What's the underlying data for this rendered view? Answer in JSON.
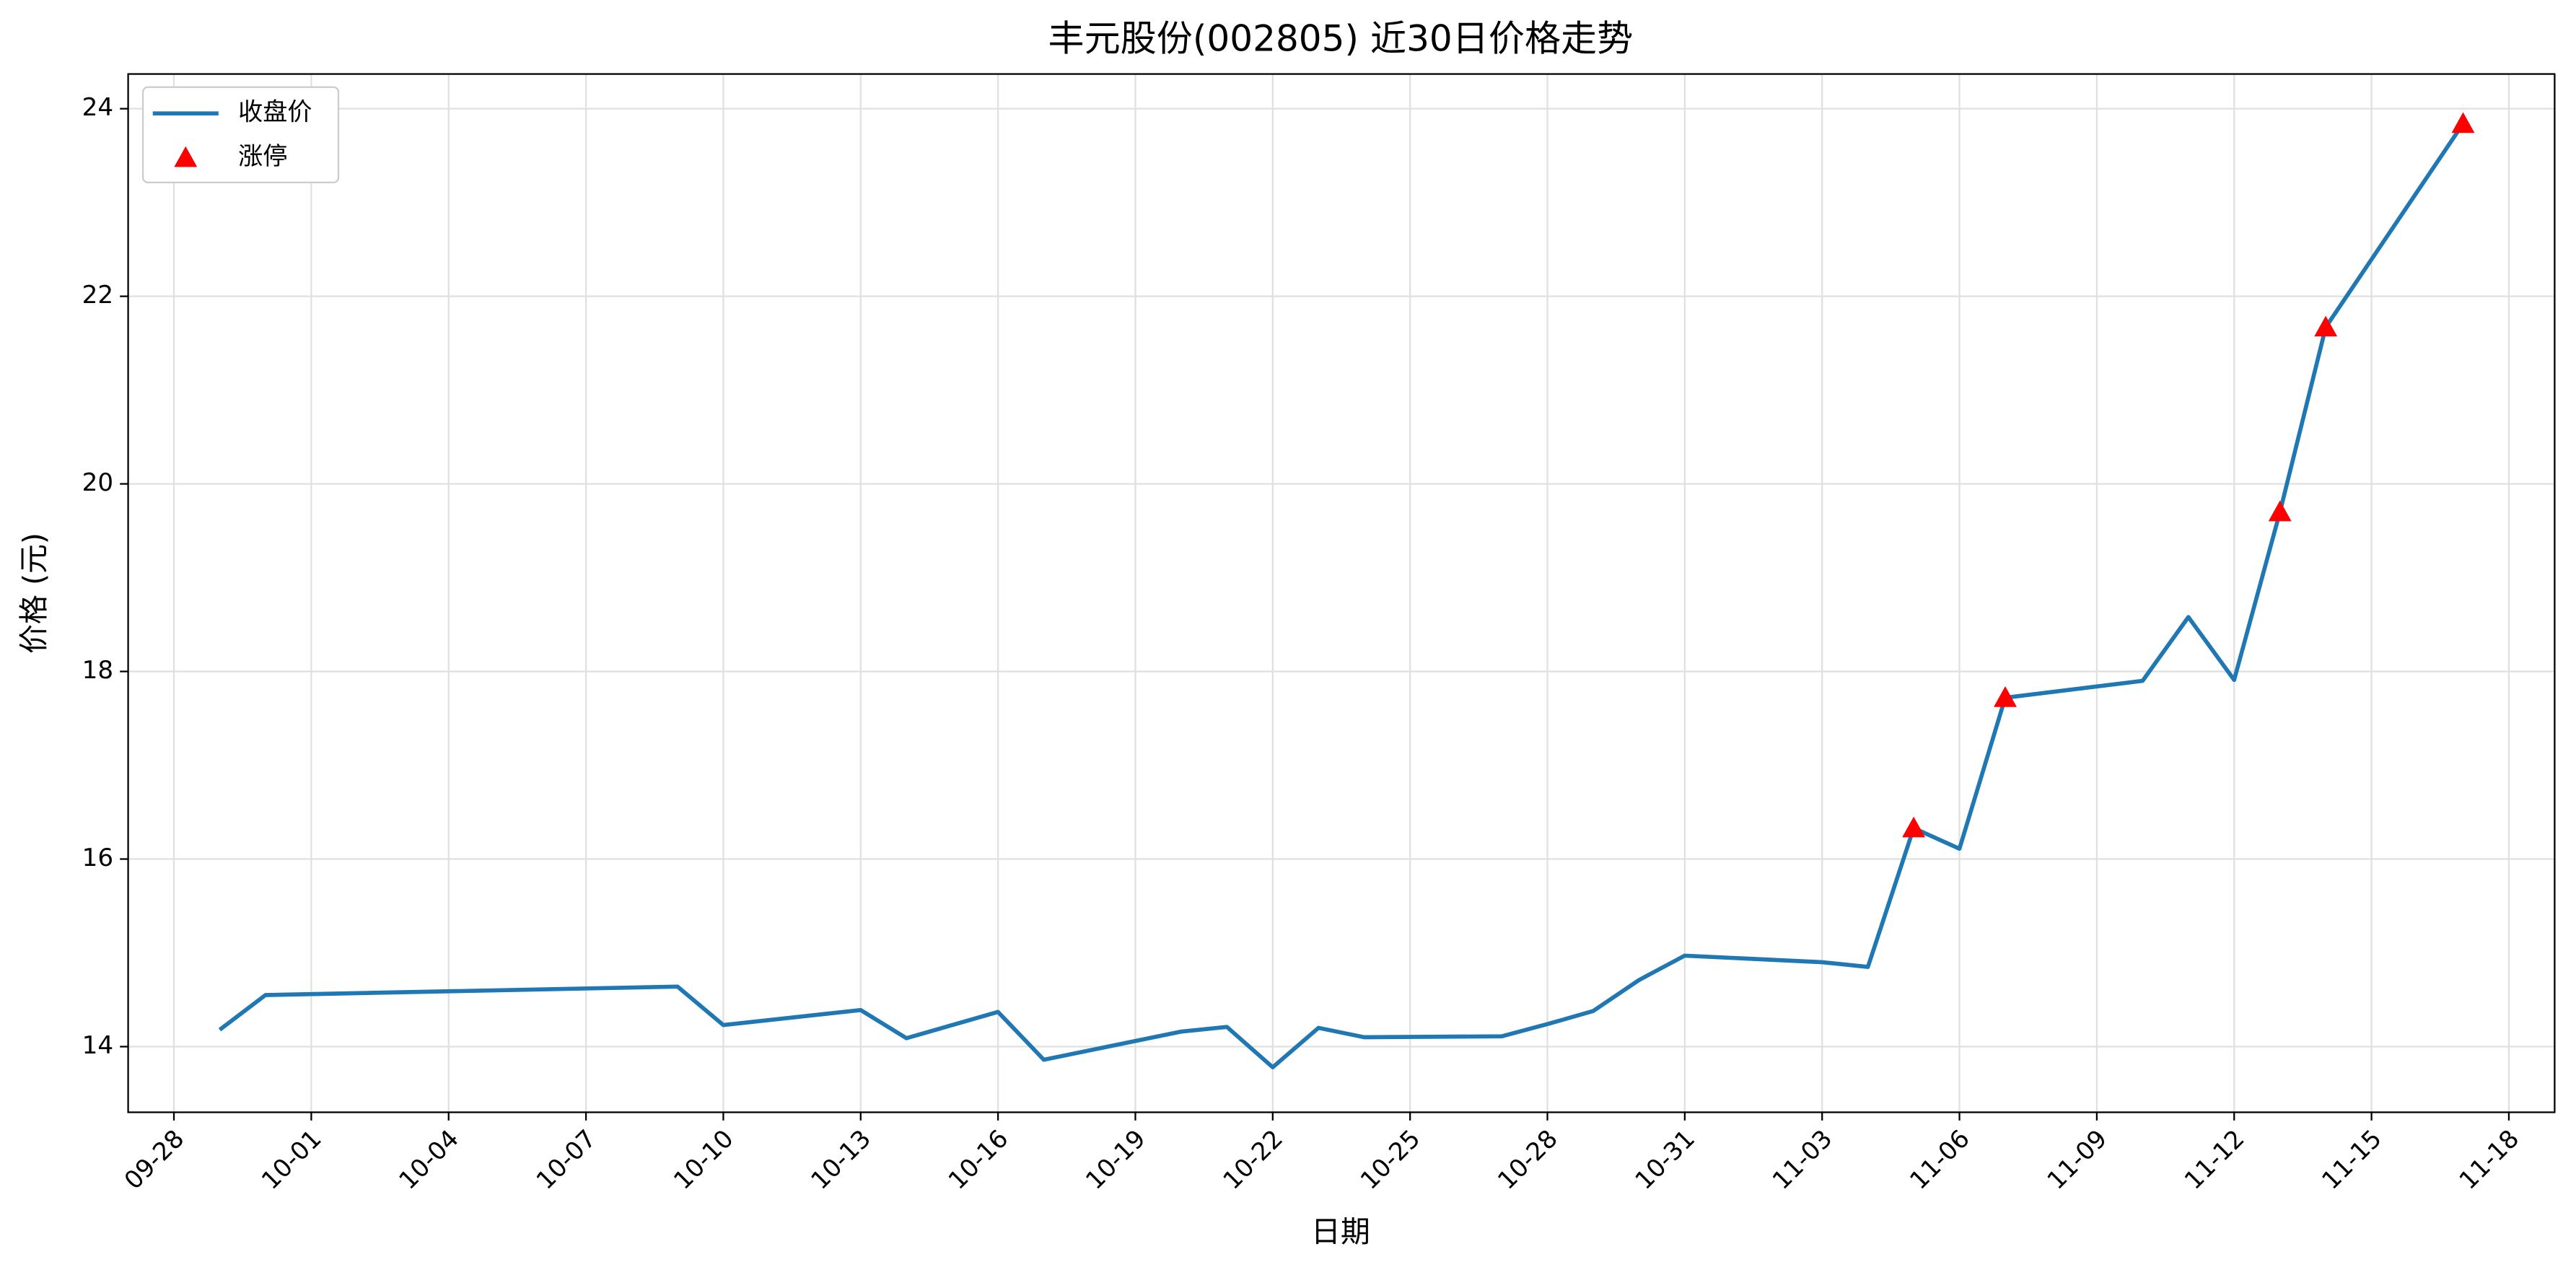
{
  "chart_data": {
    "type": "line",
    "title": "丰元股份(002805) 近30日价格走势",
    "x_label": "日期",
    "y_label": "价格 (元)",
    "series": [
      {
        "name": "收盘价",
        "type": "line",
        "color": "#1f77b4",
        "x": [
          "09-29",
          "09-30",
          "10-09",
          "10-10",
          "10-13",
          "10-14",
          "10-16",
          "10-17",
          "10-20",
          "10-21",
          "10-22",
          "10-23",
          "10-24",
          "10-27",
          "10-28",
          "10-29",
          "10-30",
          "10-31",
          "11-03",
          "11-04",
          "11-05",
          "11-06",
          "11-07",
          "11-10",
          "11-11",
          "11-12",
          "11-13",
          "11-14",
          "11-17"
        ],
        "values": [
          14.18,
          14.55,
          14.64,
          14.23,
          14.39,
          14.09,
          14.37,
          13.86,
          14.16,
          14.21,
          13.78,
          14.2,
          14.1,
          14.11,
          14.24,
          14.38,
          14.71,
          14.97,
          14.9,
          14.85,
          16.33,
          16.11,
          17.72,
          17.9,
          18.58,
          17.91,
          19.7,
          21.67,
          23.84
        ]
      },
      {
        "name": "涨停",
        "type": "scatter",
        "marker": "triangle",
        "color": "#ff0000",
        "x": [
          "11-05",
          "11-07",
          "11-13",
          "11-14",
          "11-17"
        ],
        "values": [
          16.33,
          17.72,
          19.7,
          21.67,
          23.84
        ]
      }
    ],
    "xlim": [
      "09-27",
      "11-19"
    ],
    "xticks": [
      "09-28",
      "10-01",
      "10-04",
      "10-07",
      "10-10",
      "10-13",
      "10-16",
      "10-19",
      "10-22",
      "10-25",
      "10-28",
      "10-31",
      "11-03",
      "11-06",
      "11-09",
      "11-12",
      "11-15",
      "11-18"
    ],
    "ylim": [
      13.3,
      24.37
    ],
    "yticks": [
      14,
      16,
      18,
      20,
      22,
      24
    ],
    "grid": true,
    "legend": "upper-left"
  }
}
